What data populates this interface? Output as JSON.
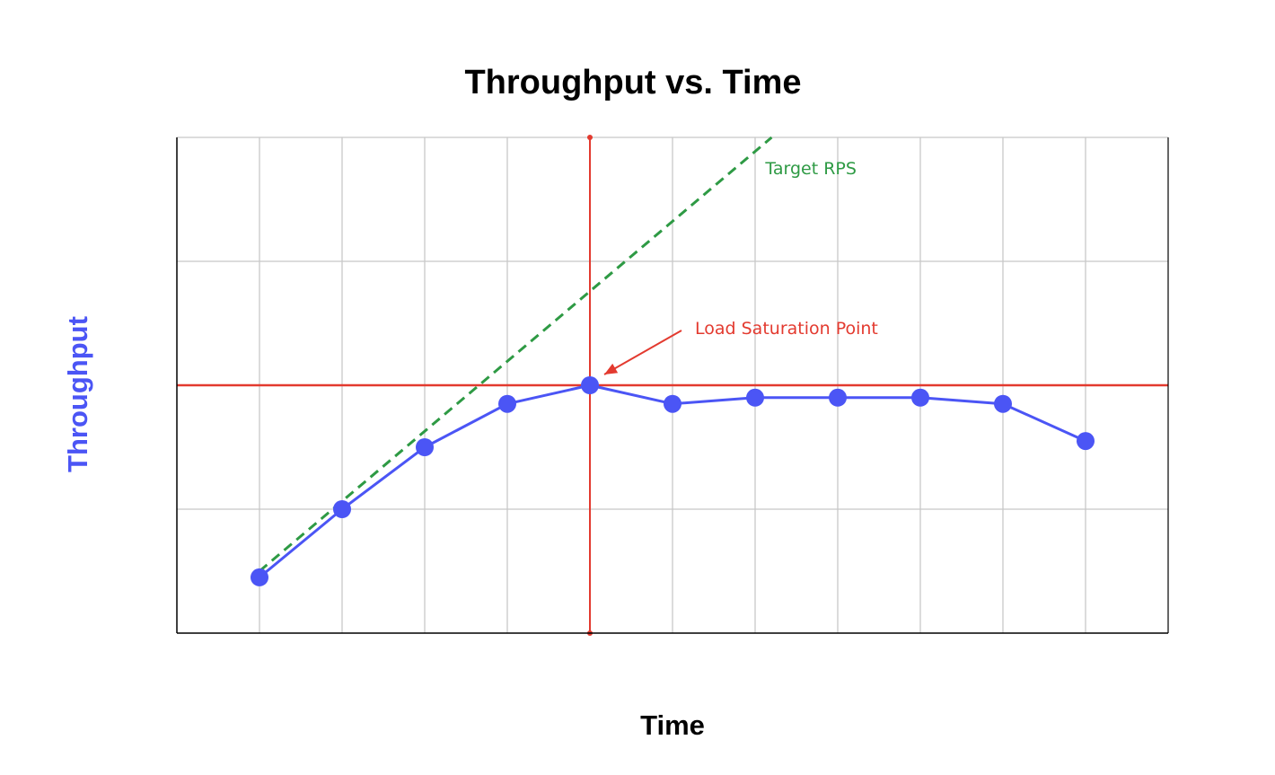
{
  "chart_data": {
    "type": "line",
    "title": "Throughput vs. Time",
    "xlabel": "Time",
    "ylabel": "Throughput",
    "xlim": [
      0,
      12
    ],
    "ylim": [
      0,
      4
    ],
    "grid": true,
    "x": [
      1,
      2,
      3,
      4,
      5,
      6,
      7,
      8,
      9,
      10,
      11
    ],
    "series": [
      {
        "values": [
          0.45,
          1.0,
          1.5,
          1.85,
          2.0,
          1.85,
          1.9,
          1.9,
          1.9,
          1.85,
          1.55
        ],
        "color": "#4b55f5"
      }
    ],
    "target_line": {
      "label": "Target RPS",
      "x": [
        1,
        7.2
      ],
      "y": [
        0.5,
        4.0
      ],
      "color": "#2e9a44",
      "style": "dashed"
    },
    "saturation": {
      "label": "Load Saturation Point",
      "x": 5,
      "y": 2.0,
      "color": "#e33a2f"
    },
    "colors": {
      "axis_title_y": "#4b55f5",
      "grid": "#c8c8c8"
    }
  }
}
